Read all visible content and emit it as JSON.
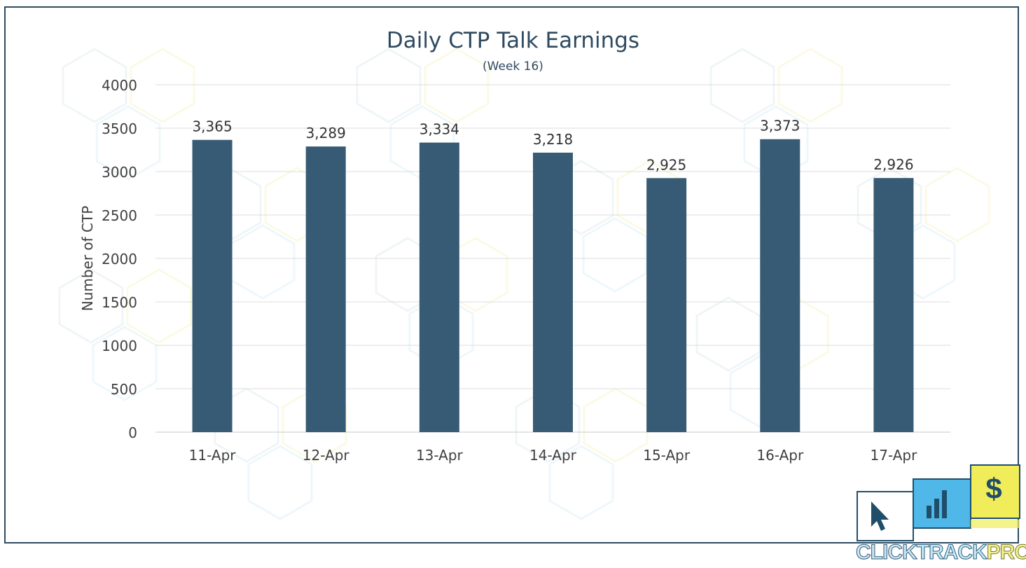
{
  "chart_data": {
    "type": "bar",
    "title": "Daily CTP Talk Earnings",
    "subtitle": "(Week 16)",
    "ylabel": "Number of CTP",
    "xlabel": "",
    "categories": [
      "11-Apr",
      "12-Apr",
      "13-Apr",
      "14-Apr",
      "15-Apr",
      "16-Apr",
      "17-Apr"
    ],
    "values": [
      3365,
      3289,
      3334,
      3218,
      2925,
      3373,
      2926
    ],
    "data_labels": [
      "3,365",
      "3,289",
      "3,334",
      "3,218",
      "2,925",
      "3,373",
      "2,926"
    ],
    "ylim": [
      0,
      4000
    ],
    "yticks": [
      0,
      500,
      1000,
      1500,
      2000,
      2500,
      3000,
      3500,
      4000
    ],
    "grid": true,
    "bar_color": "#375b75"
  },
  "logo": {
    "text_click": "CLICK",
    "text_track": "TRACK",
    "text_profit": "PROFIT",
    "dollar_symbol": "$",
    "colors": {
      "navy": "#1f4e6b",
      "blue": "#4fb8e8",
      "yellow": "#f0ec5a"
    }
  }
}
